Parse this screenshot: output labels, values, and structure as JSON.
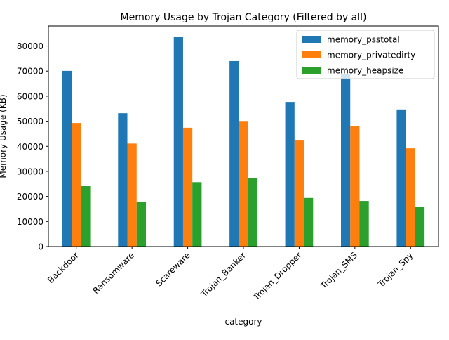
{
  "chart_data": {
    "type": "bar",
    "title": "Memory Usage by Trojan Category (Filtered by all)",
    "xlabel": "category",
    "ylabel": "Memory Usage (KB)",
    "categories": [
      "Backdoor",
      "Ransomware",
      "Scareware",
      "Trojan_Banker",
      "Trojan_Dropper",
      "Trojan_SMS",
      "Trojan_Spy"
    ],
    "series": [
      {
        "name": "memory_psstotal",
        "color": "#1f77b4",
        "values": [
          70100,
          53200,
          83800,
          74000,
          57700,
          68800,
          54700
        ]
      },
      {
        "name": "memory_privatedirty",
        "color": "#ff7f0e",
        "values": [
          49300,
          41100,
          47400,
          50100,
          42300,
          48200,
          39200
        ]
      },
      {
        "name": "memory_heapsize",
        "color": "#2ca02c",
        "values": [
          24100,
          17900,
          25700,
          27200,
          19400,
          18200,
          15800
        ]
      }
    ],
    "yticks": [
      "0",
      "10000",
      "20000",
      "30000",
      "40000",
      "50000",
      "60000",
      "70000",
      "80000"
    ],
    "ylim": [
      0,
      88000
    ],
    "grid": false,
    "legend_position": "top-right"
  }
}
